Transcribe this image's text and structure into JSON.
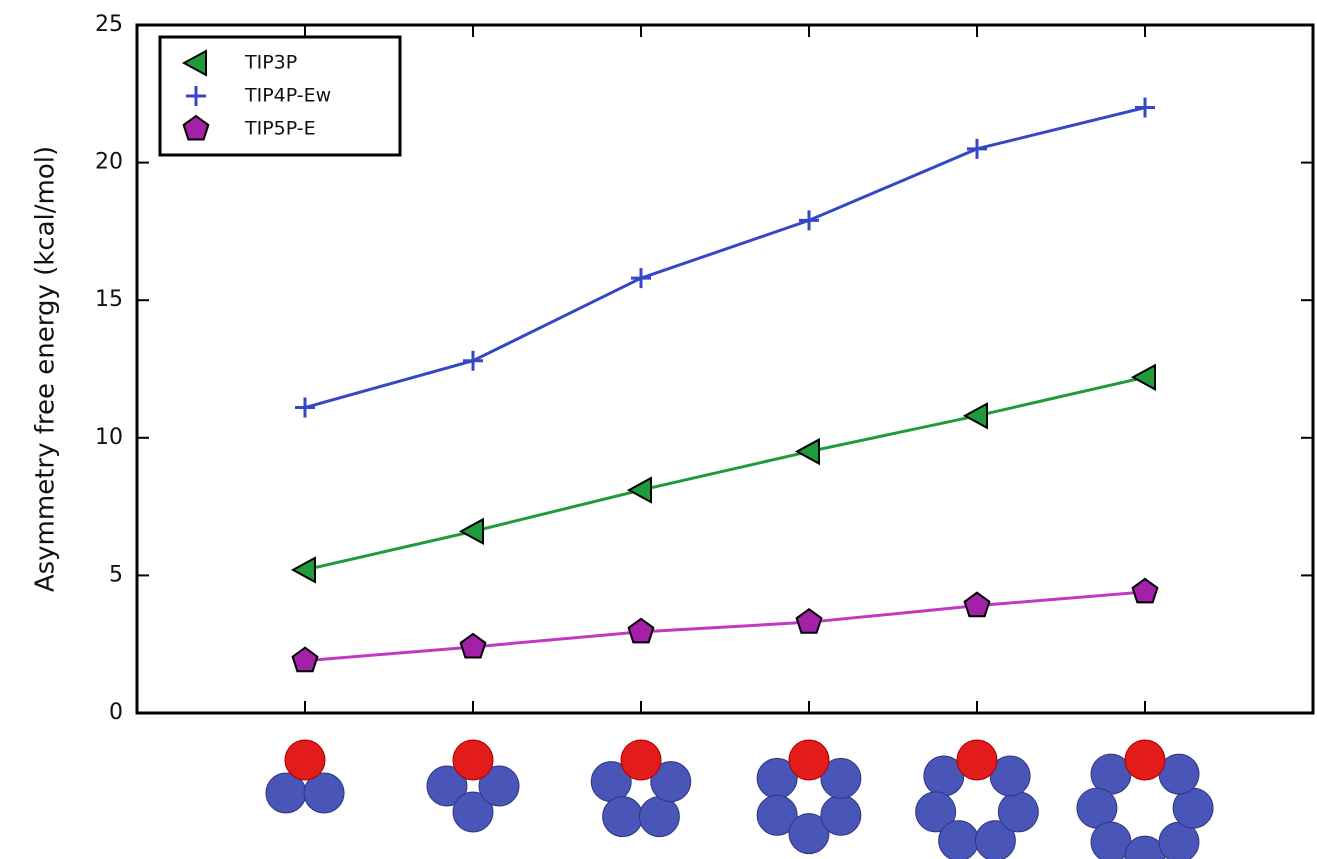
{
  "chart_data": {
    "type": "line",
    "y_label": "Asymmetry free energy (kcal/mol)",
    "categories": [
      null,
      null,
      null,
      null,
      null,
      null
    ],
    "series": [
      {
        "name": "TIP3P",
        "color": "#1f9a3c",
        "marker": "triangle-left",
        "values": [
          5.2,
          6.6,
          8.1,
          9.5,
          10.8,
          12.2
        ]
      },
      {
        "name": "TIP4P-Ew",
        "color": "#3448c4",
        "marker": "plus",
        "values": [
          11.1,
          12.8,
          15.8,
          17.9,
          20.5,
          22.0
        ]
      },
      {
        "name": "TIP5P-E",
        "color": "#c238c4",
        "marker": "pentagon",
        "values": [
          1.9,
          2.4,
          2.95,
          3.3,
          3.9,
          4.4
        ]
      }
    ],
    "ylim": [
      0,
      25
    ],
    "yticks": [
      0,
      5,
      10,
      15,
      20,
      25
    ],
    "legend": "upper left"
  }
}
